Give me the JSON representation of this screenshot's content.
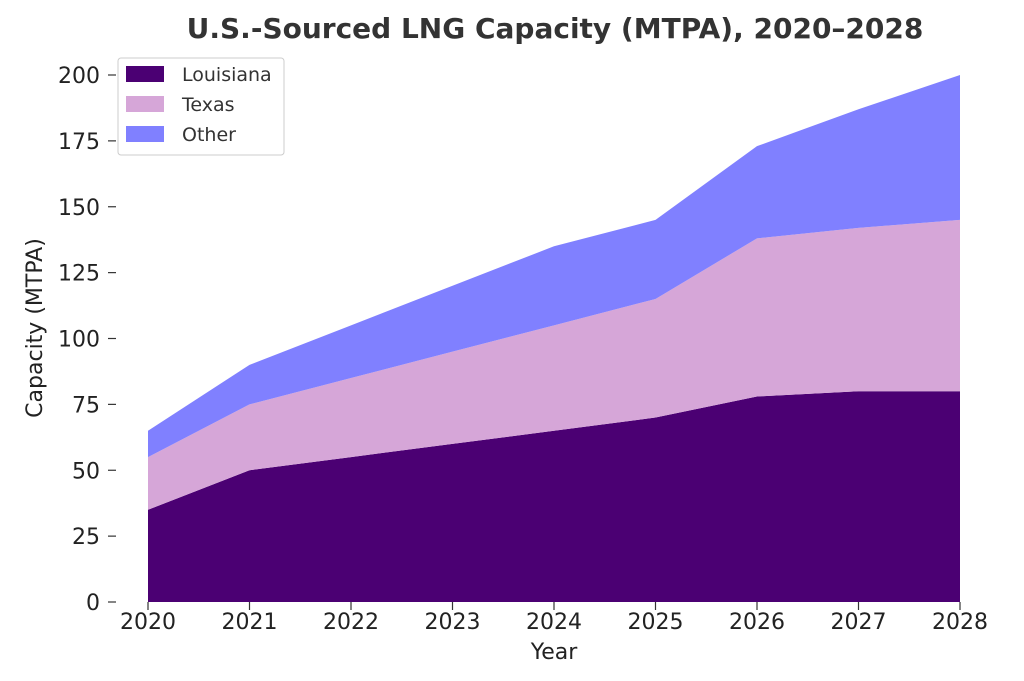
{
  "chart_data": {
    "type": "area",
    "stacked": true,
    "title": "U.S.-Sourced LNG Capacity (MTPA), 2020–2028",
    "xlabel": "Year",
    "ylabel": "Capacity (MTPA)",
    "x": [
      "2020",
      "2021",
      "2022",
      "2023",
      "2024",
      "2025",
      "2026",
      "2027",
      "2028"
    ],
    "ylim": [
      0,
      200
    ],
    "yticks": [
      "0",
      "25",
      "50",
      "75",
      "100",
      "125",
      "150",
      "175",
      "200"
    ],
    "grid": false,
    "legend_position": "top-left",
    "series": [
      {
        "name": "Louisiana",
        "color": "#4b0073",
        "values": [
          35,
          50,
          55,
          60,
          65,
          70,
          78,
          80,
          80
        ]
      },
      {
        "name": "Texas",
        "color": "#d6a6d8",
        "values": [
          20,
          25,
          30,
          35,
          40,
          45,
          60,
          62,
          65
        ]
      },
      {
        "name": "Other",
        "color": "#8080ff",
        "values": [
          10,
          15,
          20,
          25,
          30,
          30,
          35,
          45,
          55
        ]
      }
    ]
  }
}
